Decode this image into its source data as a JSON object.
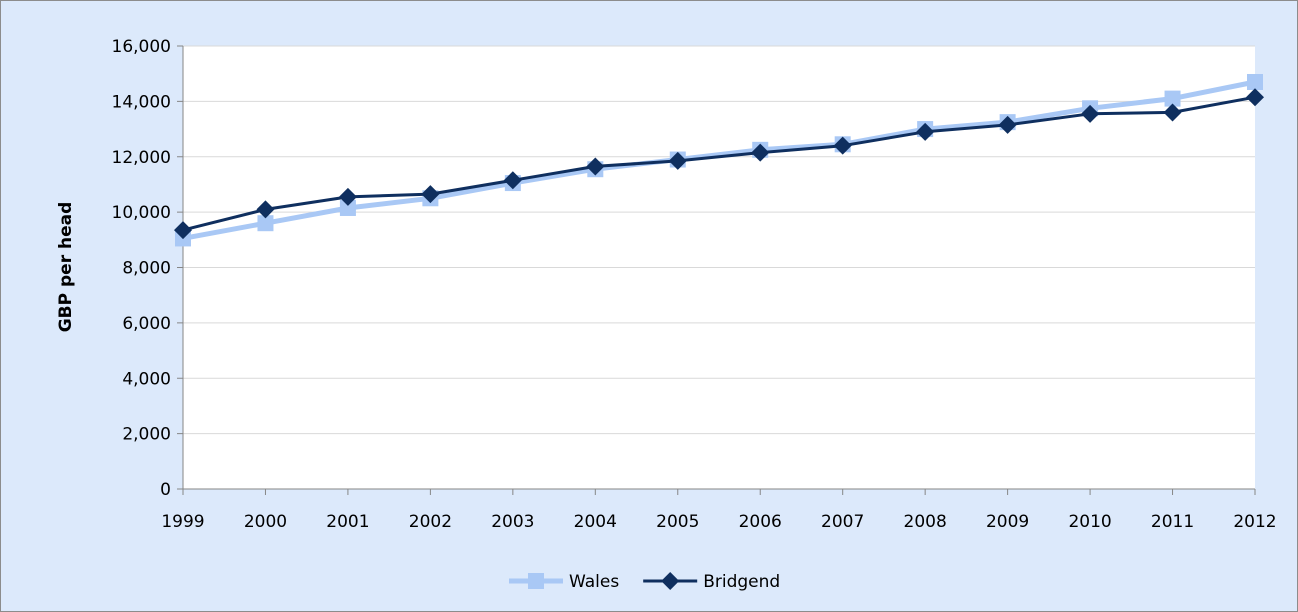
{
  "chart_data": {
    "type": "line",
    "title": "",
    "xlabel": "",
    "ylabel": "GBP per head",
    "ylim": [
      0,
      16000
    ],
    "yticks": [
      0,
      2000,
      4000,
      6000,
      8000,
      10000,
      12000,
      14000,
      16000
    ],
    "ytick_labels": [
      "0",
      "2,000",
      "4,000",
      "6,000",
      "8,000",
      "10,000",
      "12,000",
      "14,000",
      "16,000"
    ],
    "categories": [
      "1999",
      "2000",
      "2001",
      "2002",
      "2003",
      "2004",
      "2005",
      "2006",
      "2007",
      "2008",
      "2009",
      "2010",
      "2011",
      "2012"
    ],
    "grid": "horizontal",
    "legend_position": "bottom",
    "series": [
      {
        "name": "Wales",
        "color": "#a9c8f5",
        "marker": "square",
        "values": [
          9050,
          9600,
          10150,
          10500,
          11050,
          11550,
          11900,
          12250,
          12450,
          13000,
          13250,
          13750,
          14100,
          14700
        ]
      },
      {
        "name": "Bridgend",
        "color": "#0f2f5f",
        "marker": "diamond",
        "values": [
          9350,
          10100,
          10550,
          10650,
          11150,
          11650,
          11850,
          12150,
          12400,
          12900,
          13150,
          13550,
          13600,
          14150
        ]
      }
    ]
  }
}
